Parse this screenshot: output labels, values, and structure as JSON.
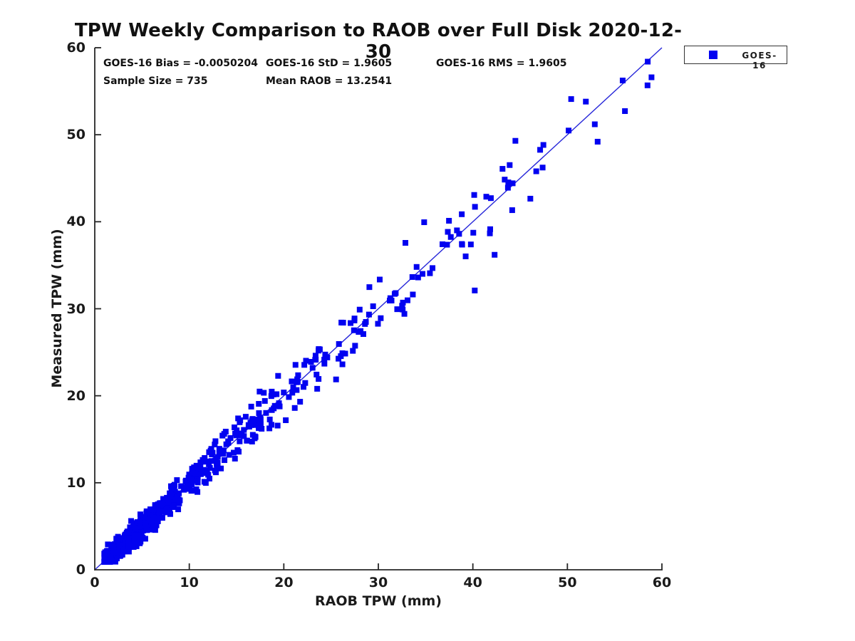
{
  "chart_data": {
    "type": "scatter",
    "title": "TPW Weekly Comparison to RAOB over Full Disk 2020-12-30",
    "xlabel": "RAOB TPW (mm)",
    "ylabel": "Measured TPW (mm)",
    "xlim": [
      0,
      60
    ],
    "ylim": [
      0,
      60
    ],
    "xticks": [
      0,
      10,
      20,
      30,
      40,
      50,
      60
    ],
    "yticks": [
      0,
      10,
      20,
      30,
      40,
      50,
      60
    ],
    "grid": false,
    "axis_color": "#262626",
    "annotations": {
      "bias": "GOES-16 Bias = -0.0050204",
      "std": "GOES-16 StD = 1.9605",
      "rms": "GOES-16 RMS = 1.9605",
      "sample_size": "Sample Size = 735",
      "mean_raob": "Mean RAOB = 13.2541"
    },
    "legend": {
      "position": "top-right-outside",
      "entries": [
        {
          "label": "GOES-16",
          "marker": "square",
          "color": "#0202f0"
        }
      ]
    },
    "fit_line": {
      "x1": 0,
      "y1": 0,
      "x2": 60,
      "y2": 60,
      "color": "#2626d9",
      "width": 1.4
    },
    "series": [
      {
        "name": "GOES-16",
        "marker": "square",
        "marker_size_px": 8,
        "color": "#0202f0",
        "sample_size": 735,
        "bias": -0.0050204,
        "std": 1.9605,
        "rms": 1.9605,
        "mean_raob": 13.2541,
        "point_generation": {
          "note": "735 points total: dense cluster hugging the 1:1 line at low TPW, thinning toward high TPW; scatter grows with TPW",
          "seed": 20201230,
          "clusters": [
            {
              "count": 150,
              "xmin": 1.0,
              "xmax": 4.2,
              "pow": 1.1,
              "sigma": 0.5
            },
            {
              "count": 200,
              "xmin": 1.6,
              "xmax": 8.5,
              "pow": 1.25,
              "sigma": 0.65
            },
            {
              "count": 140,
              "xmin": 3.5,
              "xmax": 11.5,
              "pow": 1.0,
              "sigma": 0.8
            },
            {
              "count": 90,
              "xmin": 9.5,
              "xmax": 17.5,
              "pow": 1.0,
              "sigma": 1.05
            },
            {
              "count": 60,
              "xmin": 16.0,
              "xmax": 24.0,
              "pow": 1.0,
              "sigma": 1.5
            },
            {
              "count": 45,
              "xmin": 24.0,
              "xmax": 34.0,
              "pow": 1.0,
              "sigma": 1.9
            },
            {
              "count": 30,
              "xmin": 34.0,
              "xmax": 44.0,
              "pow": 1.0,
              "sigma": 2.3
            },
            {
              "count": 12,
              "xmin": 44.0,
              "xmax": 59.0,
              "pow": 1.0,
              "sigma": 2.1
            }
          ],
          "y_clip": [
            0.9,
            59.4
          ]
        },
        "feature_points": [
          [
            50.4,
            54.1
          ],
          [
            44.5,
            49.3
          ],
          [
            52.9,
            51.2
          ],
          [
            53.2,
            49.2
          ],
          [
            58.5,
            58.4
          ],
          [
            58.9,
            56.6
          ],
          [
            40.2,
            32.1
          ],
          [
            42.3,
            36.2
          ]
        ]
      }
    ]
  }
}
